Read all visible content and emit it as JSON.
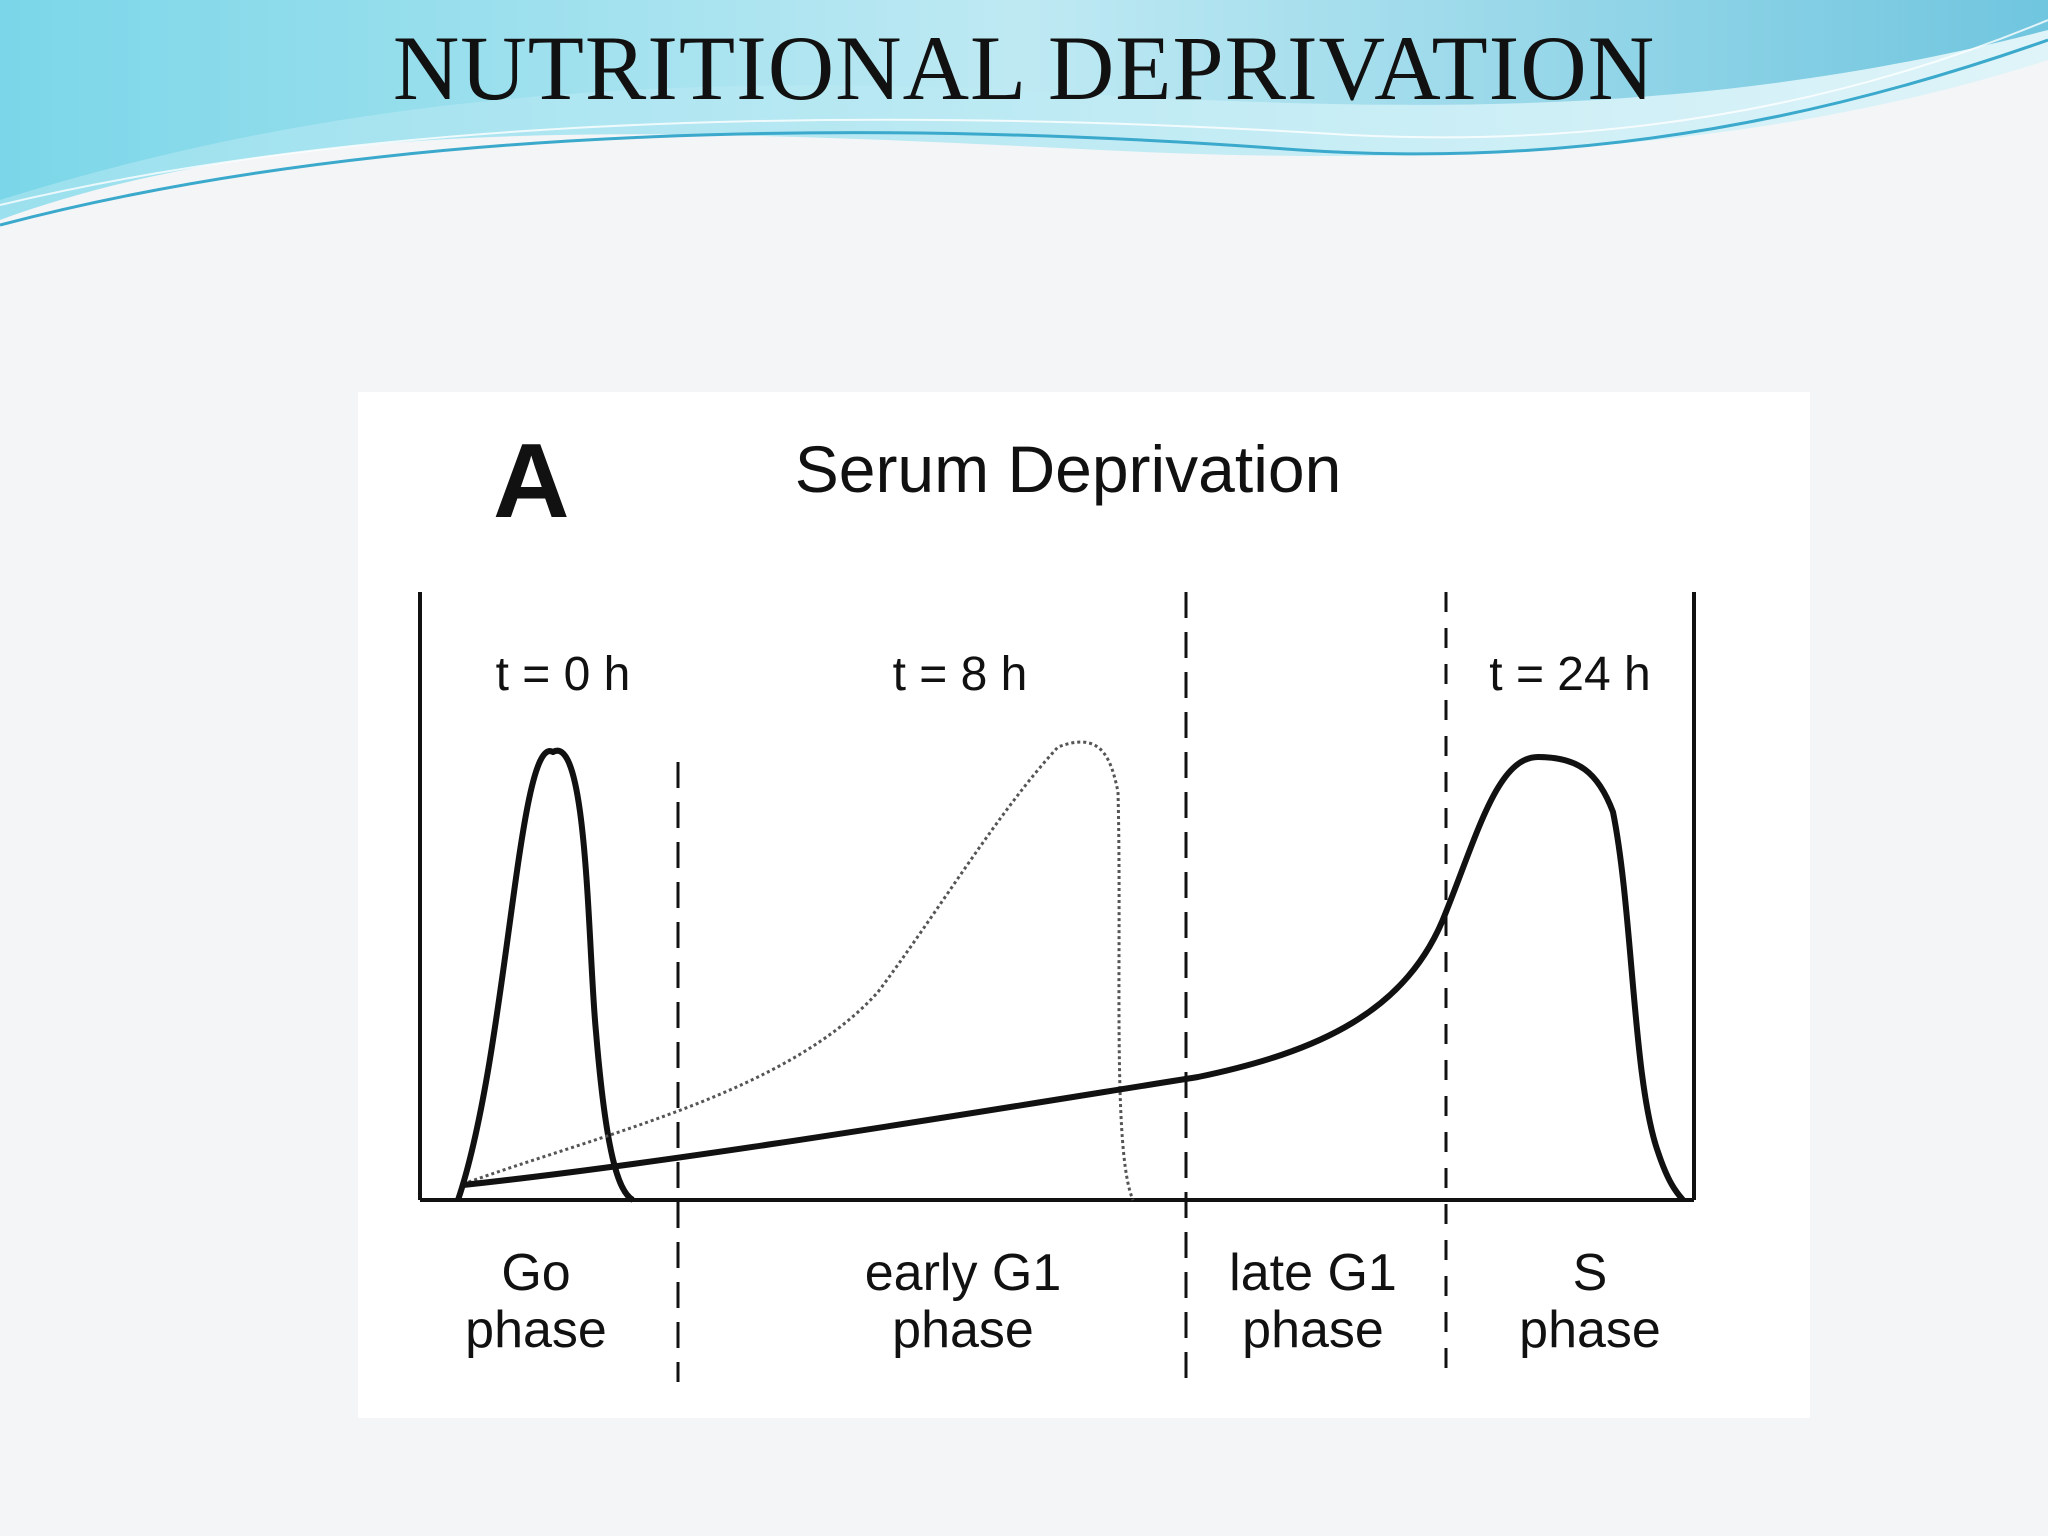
{
  "slide": {
    "title": "NUTRITIONAL DEPRIVATION"
  },
  "figure": {
    "panel_letter": "A",
    "title": "Serum Deprivation",
    "colors": {
      "ink": "#111111",
      "wave_light": "#bfe9f3",
      "wave_mid": "#79d3ea",
      "wave_dark": "#4bb6d6"
    },
    "time_labels": [
      {
        "text": "t = 0 h",
        "curve": "thick solid, narrow peak (Go phase)"
      },
      {
        "text": "t = 8 h",
        "curve": "thin dotted, peak in early G1"
      },
      {
        "text": "t = 24 h",
        "curve": "thick solid, peak in S phase"
      }
    ],
    "phases": [
      {
        "line1": "Go",
        "line2": "phase"
      },
      {
        "line1": "early G1",
        "line2": "phase"
      },
      {
        "line1": "late G1",
        "line2": "phase"
      },
      {
        "line1": "S",
        "line2": "phase"
      }
    ]
  }
}
